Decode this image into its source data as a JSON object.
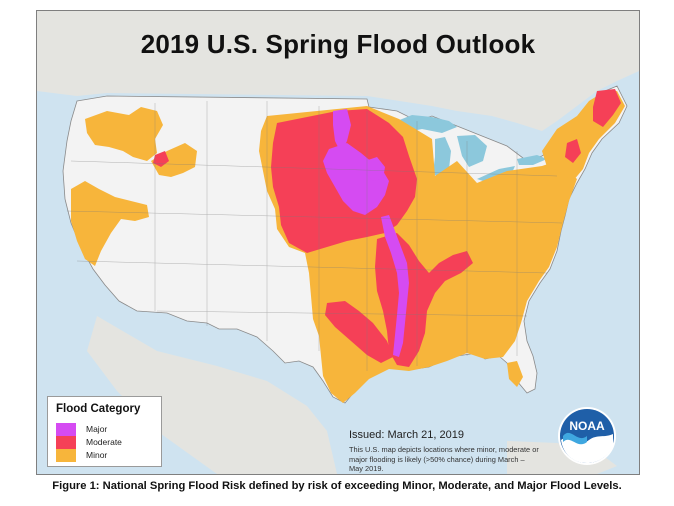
{
  "title": "2019 U.S. Spring Flood Outlook",
  "legend": {
    "title": "Flood Category",
    "items": [
      {
        "label": "Major",
        "color": "#d54bf2"
      },
      {
        "label": "Moderate",
        "color": "#f54057"
      },
      {
        "label": "Minor",
        "color": "#f7b53b"
      }
    ]
  },
  "issued": "Issued:  March 21, 2019",
  "note": "This U.S. map depicts locations where minor, moderate or major flooding is likely (>50% chance) during March – May 2019.",
  "logo": {
    "text": "NOAA",
    "icon": "noaa-logo-icon"
  },
  "caption": "Figure 1: National Spring Flood Risk defined by risk of exceeding Minor, Moderate, and Major Flood Levels.",
  "colors": {
    "water": "#cfe3f0",
    "land_us": "#f3f3f3",
    "land_other": "#e4e4e0",
    "great_lakes": "#8cc8dc"
  }
}
